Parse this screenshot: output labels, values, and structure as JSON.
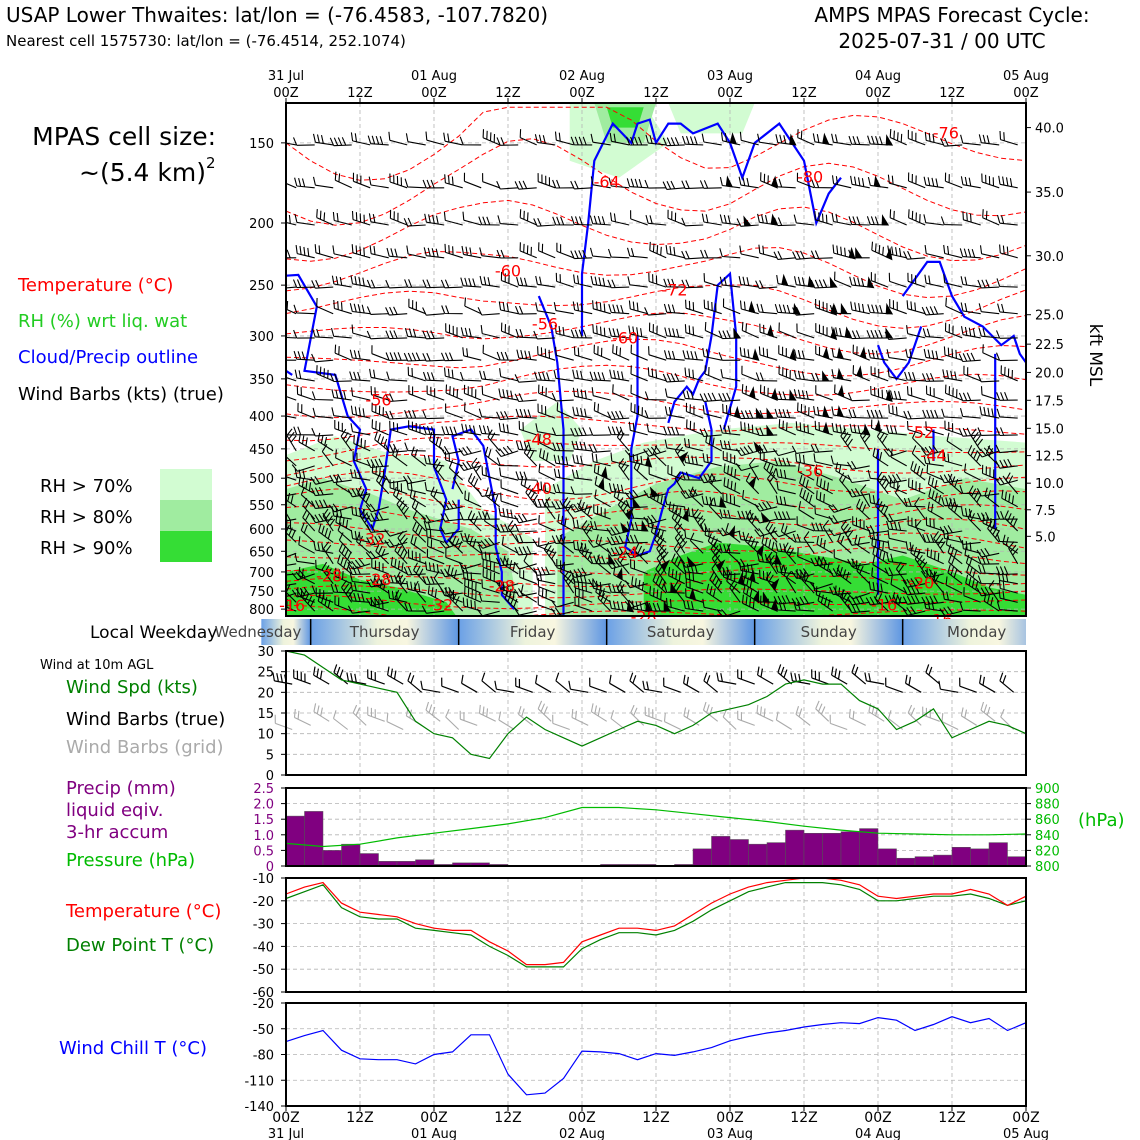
{
  "header": {
    "title_left": "USAP Lower Thwaites: lat/lon = (-76.4583, -107.7820)",
    "subtitle_left": "Nearest cell 1575730: lat/lon = (-76.4514, 252.1074)",
    "title_right_1": "AMPS MPAS Forecast Cycle:",
    "title_right_2": "2025-07-31 / 00 UTC"
  },
  "sidebar": {
    "cell_size_1": "MPAS cell size:",
    "cell_size_2": "~(5.4 km)",
    "cell_size_sup": "2",
    "legend_temperature": "Temperature (°C)",
    "legend_rh": "RH (%) wrt liq. wat",
    "legend_cloud": "Cloud/Precip outline",
    "legend_barbs": "Wind Barbs (kts) (true)",
    "rh_70": "RH > 70%",
    "rh_80": "RH > 80%",
    "rh_90": "RH > 90%",
    "local_weekday": "Local Weekday",
    "wind_10m": "Wind at 10m AGL",
    "wind_spd": "Wind Spd (kts)",
    "wind_barbs_true": "Wind Barbs (true)",
    "wind_barbs_grid": "Wind Barbs (grid)",
    "precip_1": "Precip (mm)",
    "precip_2": "liquid eqiv.",
    "precip_3": "3-hr accum",
    "pressure": "Pressure (hPa)",
    "temperature": "Temperature (°C)",
    "dewpoint": "Dew Point T (°C)",
    "windchill": "Wind Chill T (°C)",
    "pressure_unit": "(hPa)",
    "kft_label": "kft MSL"
  },
  "colors": {
    "temp": "#ff0000",
    "rh_green": "#22cc22",
    "cloud": "#0000ff",
    "precip": "#800080",
    "pressure": "#00bb00",
    "dewpoint": "#008000",
    "windchill": "#0000ff",
    "grid_barb": "#aaaaaa",
    "rh70": "#d2fcd2",
    "rh80": "#a0eca0",
    "rh90": "#35dd35"
  },
  "time_axis": {
    "top_day_labels": [
      "31 Jul",
      "01 Aug",
      "02 Aug",
      "03 Aug",
      "04 Aug",
      "05 Aug"
    ],
    "top_time_labels": [
      "00Z",
      "12Z",
      "00Z",
      "12Z",
      "00Z",
      "12Z",
      "00Z",
      "12Z",
      "00Z",
      "12Z",
      "00Z"
    ],
    "bottom_time_labels": [
      "00Z",
      "12Z",
      "00Z",
      "12Z",
      "00Z",
      "12Z",
      "00Z",
      "12Z",
      "00Z",
      "12Z",
      "00Z"
    ],
    "bottom_day_labels": [
      "31 Jul",
      "01 Aug",
      "02 Aug",
      "03 Aug",
      "04 Aug",
      "05 Aug"
    ],
    "hours_range": [
      0,
      120
    ]
  },
  "weekday": {
    "days": [
      {
        "name": "Wednesday",
        "start": -4,
        "end": 4
      },
      {
        "name": "Thursday",
        "start": 4,
        "end": 28
      },
      {
        "name": "Friday",
        "start": 28,
        "end": 52
      },
      {
        "name": "Saturday",
        "start": 52,
        "end": 76
      },
      {
        "name": "Sunday",
        "start": 76,
        "end": 100
      },
      {
        "name": "Monday",
        "start": 100,
        "end": 124
      }
    ]
  },
  "chart_data": [
    {
      "type": "heatmap",
      "name": "time-height cross-section",
      "y_pressure_ticks": [
        150,
        200,
        250,
        300,
        350,
        400,
        450,
        500,
        550,
        600,
        650,
        700,
        750,
        800
      ],
      "ylim_hpa": [
        820,
        130
      ],
      "kft_ticks": [
        {
          "v": "40.0",
          "p": 142
        },
        {
          "v": "35.0",
          "p": 179
        },
        {
          "v": "30.0",
          "p": 225
        },
        {
          "v": "25.0",
          "p": 278
        },
        {
          "v": "22.5",
          "p": 309
        },
        {
          "v": "20.0",
          "p": 342
        },
        {
          "v": "17.5",
          "p": 378
        },
        {
          "v": "15.0",
          "p": 418
        },
        {
          "v": "12.5",
          "p": 461
        },
        {
          "v": "10.0",
          "p": 509
        },
        {
          "v": "7.5",
          "p": 560
        },
        {
          "v": "5.0",
          "p": 616
        }
      ],
      "temp_labels": [
        {
          "t": 52,
          "p": 173,
          "v": "-64"
        },
        {
          "t": 36,
          "p": 238,
          "v": "-60"
        },
        {
          "t": 42,
          "p": 288,
          "v": "-56"
        },
        {
          "t": 55,
          "p": 303,
          "v": "-60"
        },
        {
          "t": 63,
          "p": 255,
          "v": "-72"
        },
        {
          "t": 85,
          "p": 170,
          "v": "-80"
        },
        {
          "t": 107,
          "p": 145,
          "v": "-76"
        },
        {
          "t": 15,
          "p": 378,
          "v": "-56"
        },
        {
          "t": 41,
          "p": 436,
          "v": "-48"
        },
        {
          "t": 41,
          "p": 520,
          "v": "-40"
        },
        {
          "t": 85,
          "p": 488,
          "v": "-36"
        },
        {
          "t": 103,
          "p": 425,
          "v": "-52"
        },
        {
          "t": 105,
          "p": 462,
          "v": "-44"
        },
        {
          "t": 14,
          "p": 623,
          "v": "-32"
        },
        {
          "t": 55,
          "p": 654,
          "v": "-24"
        },
        {
          "t": 7,
          "p": 712,
          "v": "-28"
        },
        {
          "t": 15,
          "p": 720,
          "v": "-28"
        },
        {
          "t": 35,
          "p": 738,
          "v": "-28"
        },
        {
          "t": 1,
          "p": 791,
          "v": "-16"
        },
        {
          "t": 25,
          "p": 790,
          "v": "-32"
        },
        {
          "t": 58,
          "p": 825,
          "v": "-28"
        },
        {
          "t": 103,
          "p": 730,
          "v": "-20"
        },
        {
          "t": 97,
          "p": 790,
          "v": "-16"
        },
        {
          "t": 106,
          "p": 833,
          "v": "-16"
        }
      ]
    },
    {
      "type": "line",
      "name": "wind speed 10m",
      "ylim": [
        0,
        30
      ],
      "yticks": [
        0,
        5,
        10,
        15,
        20,
        25,
        30
      ],
      "x": [
        0,
        3,
        6,
        9,
        12,
        15,
        18,
        21,
        24,
        27,
        30,
        33,
        36,
        39,
        42,
        45,
        48,
        51,
        54,
        57,
        60,
        63,
        66,
        69,
        72,
        75,
        78,
        81,
        84,
        87,
        90,
        93,
        96,
        99,
        102,
        105,
        108,
        111,
        114,
        117,
        120
      ],
      "values": [
        30,
        29,
        26,
        23,
        22,
        21,
        20,
        13,
        10,
        9,
        5,
        4,
        10,
        14,
        11,
        9,
        7,
        9,
        11,
        13,
        12,
        10,
        12,
        15,
        16,
        17,
        19,
        22,
        23,
        22,
        22,
        18,
        16,
        11,
        13,
        16,
        9,
        11,
        13,
        12,
        10
      ]
    },
    {
      "type": "bar",
      "name": "precip 3hr accum",
      "ylim": [
        0,
        2.5
      ],
      "yticks": [
        0,
        0.5,
        1.0,
        1.5,
        2.0,
        2.5
      ],
      "x": [
        0,
        3,
        6,
        9,
        12,
        15,
        18,
        21,
        24,
        27,
        30,
        33,
        36,
        39,
        42,
        45,
        48,
        51,
        54,
        57,
        60,
        63,
        66,
        69,
        72,
        75,
        78,
        81,
        84,
        87,
        90,
        93,
        96,
        99,
        102,
        105,
        108,
        111,
        114,
        117
      ],
      "values": [
        1.6,
        1.75,
        0.5,
        0.7,
        0.4,
        0.15,
        0.15,
        0.2,
        0.05,
        0.1,
        0.1,
        0.05,
        0.0,
        0.0,
        0.0,
        0.0,
        0.0,
        0.05,
        0.05,
        0.05,
        0.02,
        0.05,
        0.55,
        0.95,
        0.85,
        0.7,
        0.75,
        1.15,
        1.05,
        1.05,
        1.1,
        1.2,
        0.55,
        0.25,
        0.3,
        0.35,
        0.6,
        0.55,
        0.75,
        0.3
      ]
    },
    {
      "type": "line",
      "name": "pressure hPa",
      "ylim": [
        800,
        900
      ],
      "yticks": [
        800,
        820,
        840,
        860,
        880,
        900
      ],
      "x": [
        0,
        6,
        12,
        18,
        24,
        30,
        36,
        42,
        48,
        54,
        60,
        66,
        72,
        78,
        84,
        90,
        96,
        102,
        108,
        114,
        120
      ],
      "values": [
        829,
        825,
        828,
        836,
        842,
        848,
        854,
        862,
        875,
        875,
        872,
        867,
        862,
        857,
        851,
        846,
        842,
        841,
        840,
        840,
        841
      ]
    },
    {
      "type": "line",
      "name": "temperature and dew point",
      "ylim": [
        -60,
        -10
      ],
      "yticks": [
        -10,
        -20,
        -30,
        -40,
        -50,
        -60
      ],
      "x": [
        0,
        3,
        6,
        9,
        12,
        15,
        18,
        21,
        24,
        27,
        30,
        33,
        36,
        39,
        42,
        45,
        48,
        51,
        54,
        57,
        60,
        63,
        66,
        69,
        72,
        75,
        78,
        81,
        84,
        87,
        90,
        93,
        96,
        99,
        102,
        105,
        108,
        111,
        114,
        117,
        120
      ],
      "series": [
        {
          "name": "Temperature (°C)",
          "values": [
            -17,
            -14,
            -12,
            -21,
            -25,
            -26,
            -27,
            -30,
            -32,
            -33,
            -33,
            -38,
            -42,
            -48,
            -48,
            -47,
            -38,
            -35,
            -32,
            -32,
            -33,
            -31,
            -26,
            -21,
            -17,
            -14,
            -12,
            -11,
            -10,
            -10,
            -11,
            -13,
            -18,
            -19,
            -18,
            -17,
            -17,
            -15,
            -17,
            -22,
            -18
          ]
        },
        {
          "name": "Dew Point T (°C)",
          "values": [
            -19,
            -16,
            -13,
            -23,
            -27,
            -28,
            -28,
            -32,
            -33,
            -34,
            -35,
            -40,
            -44,
            -49,
            -49,
            -49,
            -41,
            -37,
            -34,
            -34,
            -35,
            -33,
            -29,
            -24,
            -20,
            -16,
            -14,
            -12,
            -12,
            -12,
            -13,
            -15,
            -20,
            -20,
            -19,
            -18,
            -18,
            -17,
            -19,
            -22,
            -20
          ]
        }
      ]
    },
    {
      "type": "line",
      "name": "wind chill",
      "ylim": [
        -140,
        -20
      ],
      "yticks": [
        -20,
        -50,
        -80,
        -110,
        -140
      ],
      "x": [
        0,
        3,
        6,
        9,
        12,
        15,
        18,
        21,
        24,
        27,
        30,
        33,
        36,
        39,
        42,
        45,
        48,
        51,
        54,
        57,
        60,
        63,
        66,
        69,
        72,
        75,
        78,
        81,
        84,
        87,
        90,
        93,
        96,
        99,
        102,
        105,
        108,
        111,
        114,
        117,
        120
      ],
      "values": [
        -65,
        -58,
        -52,
        -75,
        -85,
        -86,
        -86,
        -91,
        -80,
        -77,
        -57,
        -57,
        -103,
        -127,
        -125,
        -108,
        -76,
        -77,
        -79,
        -86,
        -79,
        -81,
        -77,
        -72,
        -64,
        -59,
        -55,
        -52,
        -48,
        -45,
        -43,
        -44,
        -37,
        -40,
        -52,
        -45,
        -36,
        -43,
        -38,
        -52,
        -43
      ]
    }
  ]
}
